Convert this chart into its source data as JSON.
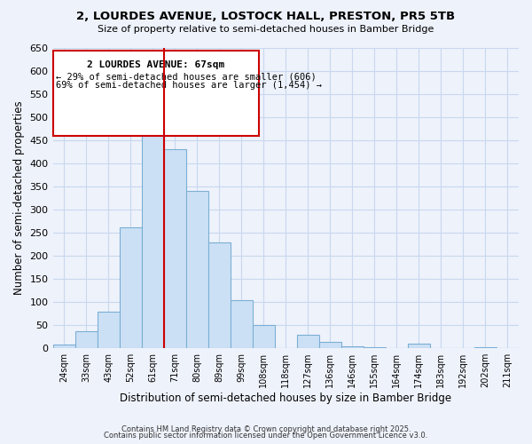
{
  "title": "2, LOURDES AVENUE, LOSTOCK HALL, PRESTON, PR5 5TB",
  "subtitle": "Size of property relative to semi-detached houses in Bamber Bridge",
  "xlabel": "Distribution of semi-detached houses by size in Bamber Bridge",
  "ylabel": "Number of semi-detached properties",
  "categories": [
    "24sqm",
    "33sqm",
    "43sqm",
    "52sqm",
    "61sqm",
    "71sqm",
    "80sqm",
    "89sqm",
    "99sqm",
    "108sqm",
    "118sqm",
    "127sqm",
    "136sqm",
    "146sqm",
    "155sqm",
    "164sqm",
    "174sqm",
    "183sqm",
    "192sqm",
    "202sqm",
    "211sqm"
  ],
  "bar_heights": [
    8,
    36,
    80,
    262,
    530,
    430,
    340,
    230,
    105,
    50,
    0,
    30,
    14,
    4,
    2,
    0,
    10,
    0,
    0,
    2,
    0
  ],
  "bar_color": "#cce0f5",
  "bar_edgecolor": "#7bafd4",
  "ylim": [
    0,
    650
  ],
  "yticks": [
    0,
    50,
    100,
    150,
    200,
    250,
    300,
    350,
    400,
    450,
    500,
    550,
    600,
    650
  ],
  "vline_color": "#cc0000",
  "vline_bar_index": 5,
  "annotation_title": "2 LOURDES AVENUE: 67sqm",
  "annotation_line1": "← 29% of semi-detached houses are smaller (606)",
  "annotation_line2": "69% of semi-detached houses are larger (1,454) →",
  "footer1": "Contains HM Land Registry data © Crown copyright and database right 2025.",
  "footer2": "Contains public sector information licensed under the Open Government Licence v3.0.",
  "background_color": "#eef2fb",
  "grid_color": "#c8d8ee",
  "annotation_box_color": "white",
  "annotation_border_color": "#cc0000"
}
